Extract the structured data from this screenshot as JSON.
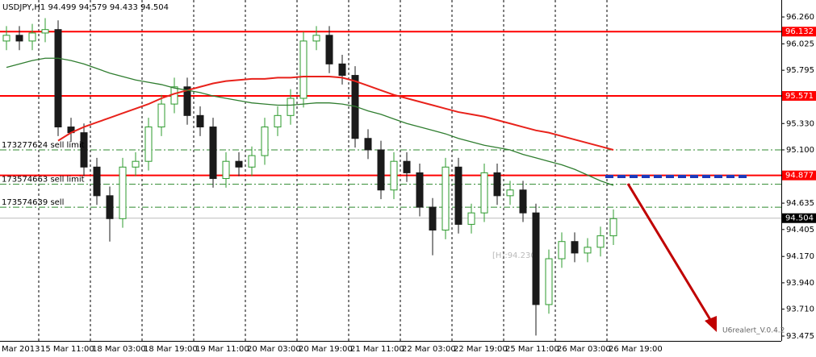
{
  "chart_data": {
    "type": "candlestick",
    "title": "USDJPY,H1  94.499 94.579 94.433 94.504",
    "categories": [
      "Mar 2013",
      null,
      null,
      "15 Mar 11:00",
      null,
      null,
      null,
      "18 Mar 03:00",
      null,
      null,
      null,
      "18 Mar 19:00",
      null,
      null,
      null,
      "19 Mar 11:00",
      null,
      null,
      null,
      "20 Mar 03:00",
      null,
      null,
      null,
      "20 Mar 19:00",
      null,
      null,
      null,
      "21 Mar 11:00",
      null,
      null,
      null,
      "22 Mar 03:00",
      null,
      null,
      null,
      "22 Mar 19:00",
      null,
      null,
      null,
      "25 Mar 11:00",
      null,
      null,
      null,
      "26 Mar 03:00",
      null,
      null,
      null,
      "26 Mar 19:00"
    ],
    "open": [
      96.05,
      96.1,
      96.05,
      96.12,
      96.15,
      95.3,
      95.25,
      94.95,
      94.7,
      94.5,
      94.95,
      95.0,
      95.3,
      95.5,
      95.65,
      95.4,
      95.3,
      94.85,
      95.0,
      94.95,
      95.05,
      95.3,
      95.4,
      95.55,
      96.05,
      96.1,
      95.85,
      95.75,
      95.2,
      95.1,
      94.75,
      95.0,
      94.9,
      94.6,
      94.4,
      94.95,
      94.45,
      94.55,
      94.9,
      94.7,
      94.75,
      94.55,
      93.75,
      94.15,
      94.3,
      94.2,
      94.25,
      94.35
    ],
    "high": [
      96.18,
      96.18,
      96.2,
      96.25,
      96.23,
      95.38,
      95.33,
      95.03,
      94.78,
      95.03,
      95.08,
      95.38,
      95.58,
      95.73,
      95.73,
      95.48,
      95.38,
      95.08,
      95.08,
      95.13,
      95.38,
      95.48,
      95.63,
      96.13,
      96.18,
      96.18,
      95.93,
      95.83,
      95.28,
      95.18,
      95.08,
      95.08,
      94.98,
      94.68,
      95.03,
      95.03,
      94.63,
      94.98,
      94.98,
      94.83,
      94.83,
      94.63,
      94.23,
      94.38,
      94.38,
      94.33,
      94.43,
      94.58
    ],
    "low": [
      95.97,
      95.97,
      95.97,
      96.04,
      95.22,
      95.17,
      94.87,
      94.62,
      94.3,
      94.42,
      94.87,
      94.92,
      95.22,
      95.42,
      95.32,
      95.22,
      94.77,
      94.77,
      94.87,
      94.87,
      94.97,
      95.22,
      95.32,
      95.47,
      95.97,
      95.77,
      95.67,
      95.12,
      95.02,
      94.67,
      94.67,
      94.82,
      94.52,
      94.18,
      94.32,
      94.37,
      94.37,
      94.47,
      94.62,
      94.62,
      94.47,
      93.48,
      93.67,
      94.07,
      94.12,
      94.12,
      94.17,
      94.27
    ],
    "close": [
      96.1,
      96.05,
      96.12,
      96.15,
      95.3,
      95.25,
      94.95,
      94.7,
      94.5,
      94.95,
      95.0,
      95.3,
      95.5,
      95.65,
      95.4,
      95.3,
      94.85,
      95.0,
      94.95,
      95.05,
      95.3,
      95.4,
      95.55,
      96.05,
      96.1,
      95.85,
      95.75,
      95.2,
      95.1,
      94.75,
      95.0,
      94.9,
      94.6,
      94.4,
      94.95,
      94.45,
      94.55,
      94.9,
      94.7,
      94.75,
      94.55,
      93.75,
      94.15,
      94.3,
      94.2,
      94.25,
      94.35,
      94.5
    ],
    "bull_color": "#2e9b2e",
    "bear_color": "#1a1a1a",
    "series": [
      {
        "color": "#e8221b",
        "values": [
          null,
          null,
          null,
          null,
          95.18,
          95.25,
          95.3,
          95.34,
          95.38,
          95.42,
          95.46,
          95.5,
          95.55,
          95.59,
          95.62,
          95.65,
          95.68,
          95.7,
          95.71,
          95.72,
          95.72,
          95.73,
          95.73,
          95.74,
          95.74,
          95.74,
          95.73,
          95.7,
          95.66,
          95.62,
          95.58,
          95.55,
          95.52,
          95.49,
          95.46,
          95.43,
          95.41,
          95.39,
          95.36,
          95.33,
          95.3,
          95.27,
          95.25,
          95.22,
          95.19,
          95.16,
          95.13,
          95.1
        ]
      },
      {
        "color": "#2f7d2f",
        "values": [
          95.82,
          95.85,
          95.88,
          95.9,
          95.9,
          95.88,
          95.85,
          95.81,
          95.77,
          95.74,
          95.71,
          95.69,
          95.67,
          95.64,
          95.62,
          95.6,
          95.57,
          95.55,
          95.53,
          95.51,
          95.5,
          95.49,
          95.49,
          95.5,
          95.51,
          95.51,
          95.5,
          95.48,
          95.44,
          95.41,
          95.37,
          95.33,
          95.3,
          95.27,
          95.24,
          95.2,
          95.17,
          95.14,
          95.12,
          95.1,
          95.06,
          95.03,
          95.0,
          94.97,
          94.93,
          94.88,
          94.83,
          94.79
        ]
      }
    ],
    "ylim": [
      93.433,
      96.408
    ],
    "yticks": [
      {
        "value": 96.26,
        "label": "96.260"
      },
      {
        "value": 96.025,
        "label": "96.025"
      },
      {
        "value": 95.795,
        "label": "95.795"
      },
      {
        "value": 95.565,
        "label": "95.565"
      },
      {
        "value": 95.33,
        "label": "95.330"
      },
      {
        "value": 95.1,
        "label": "95.100"
      },
      {
        "value": 94.865,
        "label": "94.865"
      },
      {
        "value": 94.635,
        "label": "94.635"
      },
      {
        "value": 94.405,
        "label": "94.405"
      },
      {
        "value": 94.17,
        "label": "94.170"
      },
      {
        "value": 93.94,
        "label": "93.940"
      },
      {
        "value": 93.71,
        "label": "93.710"
      },
      {
        "value": 93.475,
        "label": "93.475"
      }
    ],
    "levels": [
      96.132,
      95.571,
      94.877
    ],
    "level_color": "#ff0000",
    "orders": [
      {
        "price": 95.1,
        "label": "173277624 sell limit"
      },
      {
        "price": 94.8,
        "label": "173574663 sell limit"
      },
      {
        "price": 94.6,
        "label": "173574639 sell"
      }
    ],
    "current_price": 94.504,
    "annotations": [
      "[H]:94.230",
      "U6realert_V.0.4.2"
    ]
  }
}
